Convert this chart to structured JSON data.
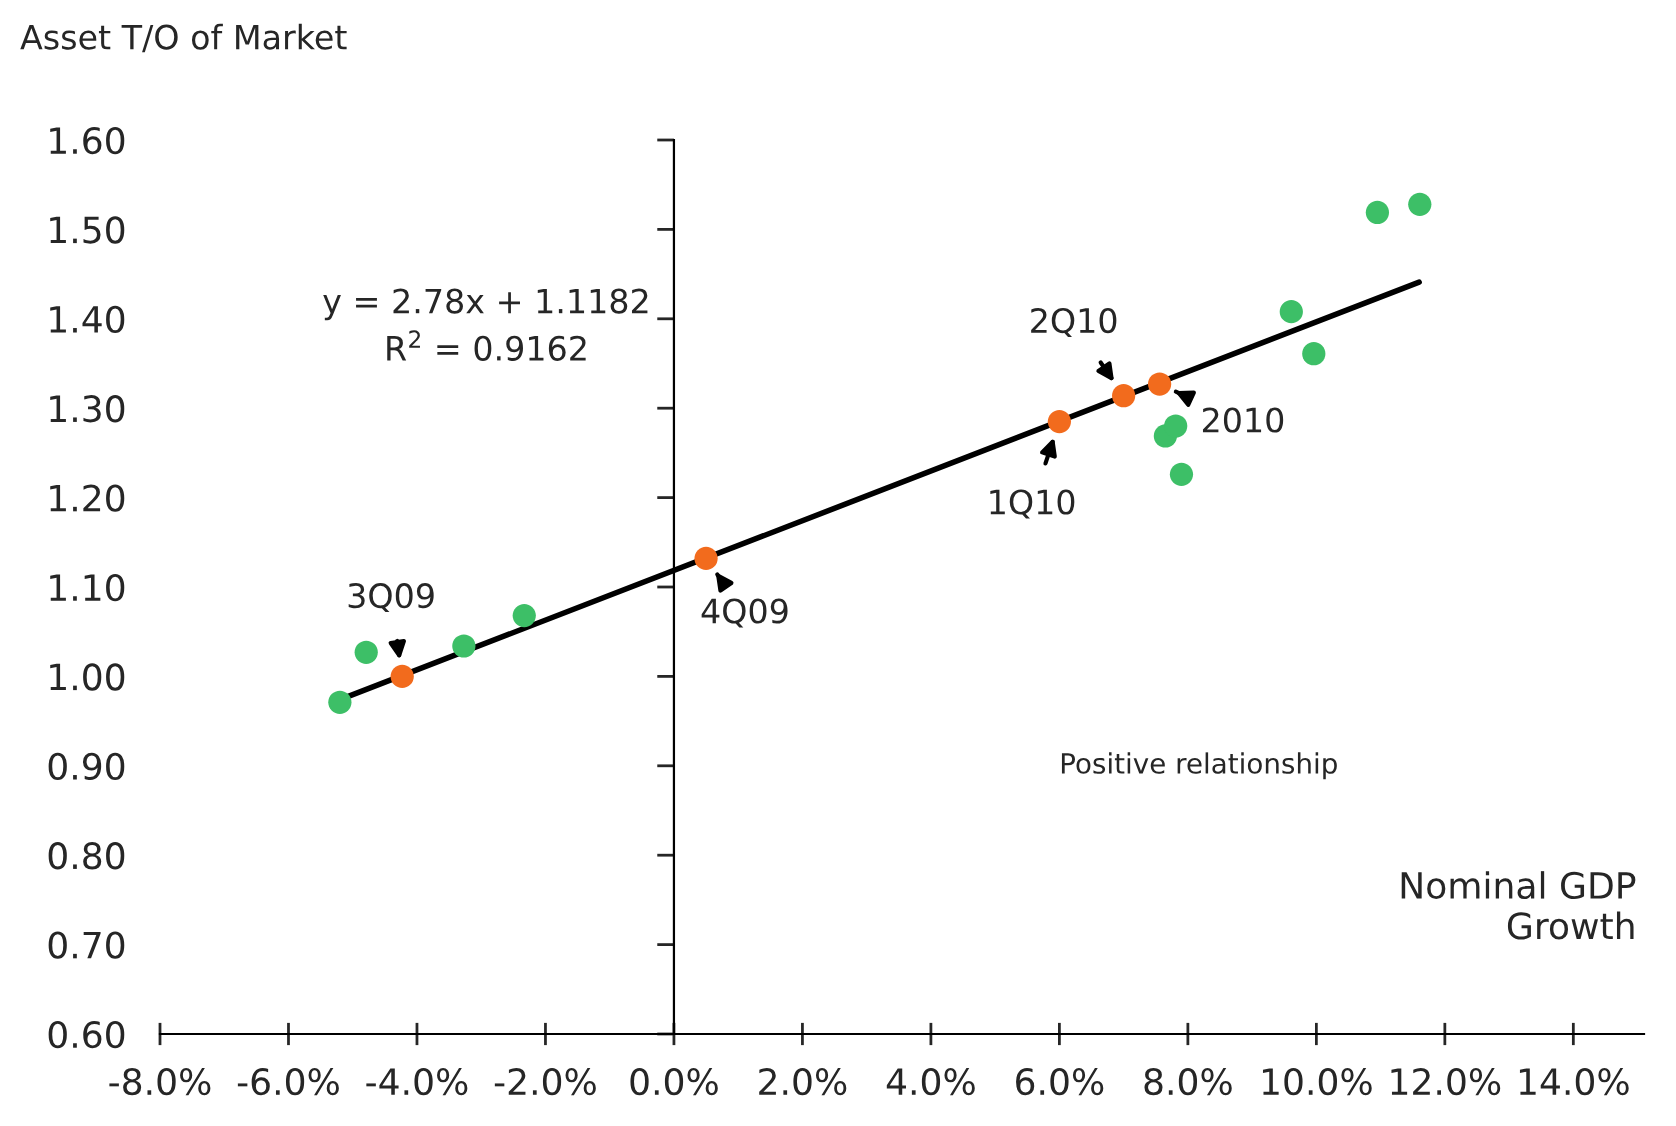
{
  "chart_data": {
    "type": "scatter",
    "ylabel": "Asset T/O of Market",
    "xlabel": "Nominal GDP\nGrowth",
    "series": [
      {
        "color": "#3dbf67",
        "marker": "circle",
        "x": [
          -0.052,
          -0.0479,
          -0.0327,
          -0.0233,
          0.0961,
          0.0996,
          0.0765,
          0.0781,
          0.079,
          0.1095,
          0.1161
        ],
        "values": [
          0.971,
          1.027,
          1.034,
          1.068,
          1.408,
          1.361,
          1.269,
          1.28,
          1.226,
          1.519,
          1.528
        ]
      },
      {
        "color": "#f26b1d",
        "marker": "circle",
        "x": [
          -0.0423,
          0.005,
          0.06,
          0.07,
          0.0756
        ],
        "values": [
          1.0,
          1.132,
          1.285,
          1.314,
          1.327
        ]
      },
      {
        "type": "line",
        "color": "#000000",
        "marker": "none",
        "x": [
          -0.052,
          0.116
        ],
        "values": [
          0.974,
          1.441
        ]
      }
    ],
    "annotations": [
      "y = 2.78x + 1.1182\nR$^{2}$ = 0.9162",
      "Positive relationship",
      {
        "text": "3Q09",
        "x": -0.0423,
        "y": 1.0
      },
      {
        "text": "4Q09",
        "x": 0.005,
        "y": 1.132
      },
      {
        "text": "1Q10",
        "x": 0.06,
        "y": 1.285
      },
      {
        "text": "2Q10",
        "x": 0.07,
        "y": 1.314
      },
      {
        "text": "2010",
        "x": 0.0756,
        "y": 1.327
      }
    ],
    "xlim": [
      -0.08,
      0.151
    ],
    "ylim": [
      0.6,
      1.6
    ],
    "xticks": [
      {
        "value": -0.08,
        "label": "-8.0%"
      },
      {
        "value": -0.06,
        "label": "-6.0%"
      },
      {
        "value": -0.04,
        "label": "-4.0%"
      },
      {
        "value": -0.02,
        "label": "-2.0%"
      },
      {
        "value": 0,
        "label": "0.0%"
      },
      {
        "value": 0.02,
        "label": "2.0%"
      },
      {
        "value": 0.04,
        "label": "4.0%"
      },
      {
        "value": 0.06,
        "label": "6.0%"
      },
      {
        "value": 0.08,
        "label": "8.0%"
      },
      {
        "value": 0.1,
        "label": "10.0%"
      },
      {
        "value": 0.12,
        "label": "12.0%"
      },
      {
        "value": 0.14,
        "label": "14.0%"
      }
    ],
    "yticks": [
      {
        "value": 0.6,
        "label": "0.60"
      },
      {
        "value": 0.7,
        "label": "0.70"
      },
      {
        "value": 0.8,
        "label": "0.80"
      },
      {
        "value": 0.9,
        "label": "0.90"
      },
      {
        "value": 1.0,
        "label": "1.00"
      },
      {
        "value": 1.1,
        "label": "1.10"
      },
      {
        "value": 1.2,
        "label": "1.20"
      },
      {
        "value": 1.3,
        "label": "1.30"
      },
      {
        "value": 1.4,
        "label": "1.40"
      },
      {
        "value": 1.5,
        "label": "1.50"
      },
      {
        "value": 1.6,
        "label": "1.60"
      }
    ],
    "legend": false
  }
}
